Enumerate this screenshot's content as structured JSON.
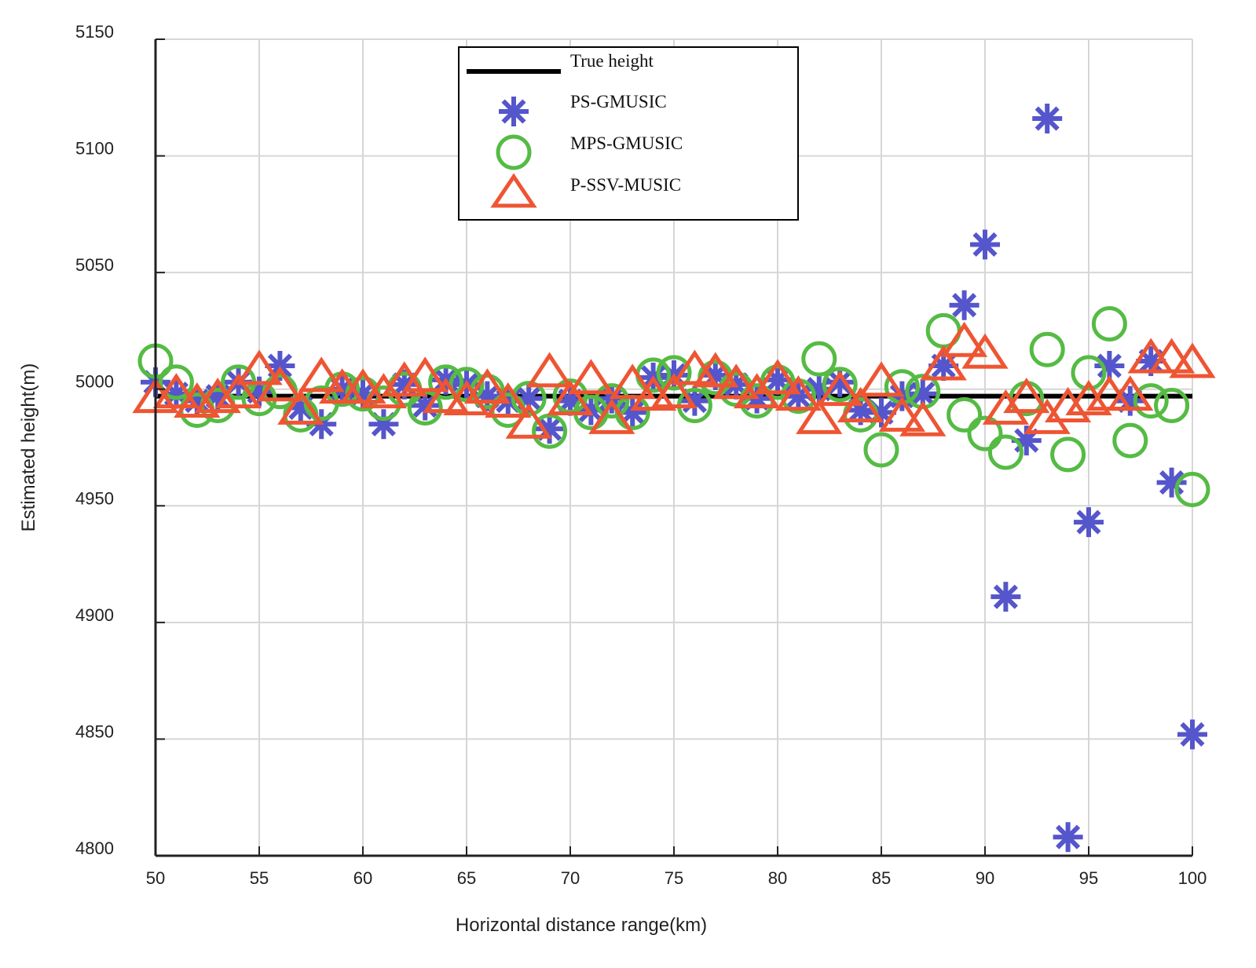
{
  "chart_data": {
    "type": "scatter",
    "title": "",
    "xlabel": "Horizontal distance range(km)",
    "ylabel": "Estimated height(m)",
    "xlim": [
      50,
      100
    ],
    "ylim": [
      4800,
      5150
    ],
    "xticks": [
      50,
      55,
      60,
      65,
      70,
      75,
      80,
      85,
      90,
      95,
      100
    ],
    "yticks": [
      4800,
      4850,
      4900,
      4950,
      5000,
      5050,
      5100,
      5150
    ],
    "grid": true,
    "legend_position": "top-center",
    "colors": {
      "true_height": "#000000",
      "ps_gmusic": "#5555cc",
      "mps_gmusic": "#55bb44",
      "p_ssv_music": "#ee5533"
    },
    "true_height": {
      "name": "True height",
      "value": 4997,
      "x_range": [
        50,
        100
      ]
    },
    "series": [
      {
        "name": "PS-GMUSIC",
        "marker": "asterisk",
        "x": [
          50,
          51,
          52,
          53,
          54,
          55,
          56,
          57,
          58,
          59,
          60,
          61,
          62,
          63,
          64,
          65,
          66,
          67,
          68,
          69,
          70,
          71,
          72,
          73,
          74,
          75,
          76,
          77,
          78,
          79,
          80,
          81,
          82,
          83,
          84,
          85,
          86,
          87,
          88,
          89,
          90,
          91,
          92,
          93,
          94,
          95,
          96,
          97,
          98,
          99,
          100
        ],
        "y": [
          5003,
          4998,
          4995,
          4997,
          5003,
          4999,
          5010,
          4992,
          4985,
          5000,
          4998,
          4985,
          5002,
          4993,
          5004,
          5002,
          4997,
          4995,
          4996,
          4983,
          4995,
          4991,
          4996,
          4990,
          5005,
          5006,
          4995,
          5006,
          5002,
          4996,
          5004,
          4997,
          5000,
          5003,
          4991,
          4990,
          4997,
          4998,
          5010,
          5036,
          5062,
          4911,
          4978,
          5116,
          4808,
          4943,
          5010,
          4995,
          5012,
          4960,
          4852
        ]
      },
      {
        "name": "MPS-GMUSIC",
        "marker": "circle",
        "x": [
          50,
          51,
          52,
          53,
          54,
          55,
          56,
          57,
          58,
          59,
          60,
          61,
          62,
          63,
          64,
          65,
          66,
          67,
          68,
          69,
          70,
          71,
          72,
          73,
          74,
          75,
          76,
          77,
          78,
          79,
          80,
          81,
          82,
          83,
          84,
          85,
          86,
          87,
          88,
          89,
          90,
          91,
          92,
          93,
          94,
          95,
          96,
          97,
          98,
          99,
          100
        ],
        "y": [
          5012,
          5003,
          4991,
          4993,
          5003,
          4996,
          4999,
          4989,
          4994,
          5000,
          4998,
          4994,
          5000,
          4992,
          5003,
          5002,
          4999,
          4991,
          4996,
          4982,
          4997,
          4990,
          4995,
          4990,
          5006,
          5007,
          4993,
          5005,
          5000,
          4995,
          5003,
          4997,
          5013,
          5002,
          4989,
          4974,
          5001,
          4999,
          5025,
          4989,
          4981,
          4973,
          4996,
          5017,
          4972,
          5007,
          5028,
          4978,
          4995,
          4993,
          4957
        ]
      },
      {
        "name": "P-SSV-MUSIC",
        "marker": "triangle",
        "x": [
          50,
          51,
          52,
          53,
          54,
          55,
          56,
          57,
          58,
          59,
          60,
          61,
          62,
          63,
          64,
          65,
          66,
          67,
          68,
          69,
          70,
          71,
          72,
          73,
          74,
          75,
          76,
          77,
          78,
          79,
          80,
          81,
          82,
          83,
          84,
          85,
          86,
          87,
          88,
          89,
          90,
          91,
          92,
          93,
          94,
          95,
          96,
          97,
          98,
          99,
          100
        ],
        "y": [
          4995,
          4997,
          4993,
          4995,
          4997,
          5007,
          5000,
          4990,
          5004,
          4999,
          4999,
          4997,
          5002,
          5004,
          4995,
          4994,
          4999,
          4993,
          4984,
          5006,
          4994,
          5003,
          4986,
          5001,
          4996,
          4997,
          5007,
          5006,
          5001,
          4997,
          5003,
          4996,
          4986,
          4998,
          4991,
          5002,
          4987,
          4985,
          5009,
          5019,
          5014,
          4990,
          4995,
          4986,
          4991,
          4994,
          4996,
          4996,
          5012,
          5012,
          5010
        ]
      }
    ]
  }
}
